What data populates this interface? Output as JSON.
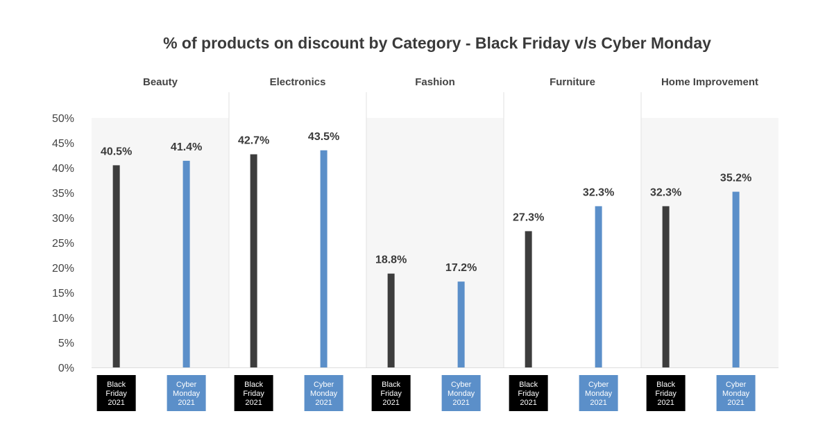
{
  "chart_data": {
    "type": "bar",
    "title": "% of products on discount by Category - Black Friday v/s Cyber Monday",
    "ylim": [
      0,
      50
    ],
    "y_ticks": [
      "0%",
      "5%",
      "10%",
      "15%",
      "20%",
      "25%",
      "30%",
      "35%",
      "40%",
      "45%",
      "50%"
    ],
    "grid": false,
    "categories": [
      "Beauty",
      "Electronics",
      "Fashion",
      "Furniture",
      "Home Improvement"
    ],
    "series": [
      {
        "name": "Black Friday 2021",
        "label_lines": [
          "Black",
          "Friday",
          "2021"
        ],
        "color": "#3d3d3d",
        "label_bg": "#000000",
        "values": [
          40.5,
          42.7,
          18.8,
          27.3,
          32.3
        ],
        "value_labels": [
          "40.5%",
          "42.7%",
          "18.8%",
          "27.3%",
          "32.3%"
        ]
      },
      {
        "name": "Cyber Monday 2021",
        "label_lines": [
          "Cyber",
          "Monday",
          "2021"
        ],
        "color": "#5b8fc9",
        "label_bg": "#5b8fc9",
        "values": [
          41.4,
          43.5,
          17.2,
          32.3,
          35.2
        ],
        "value_labels": [
          "41.4%",
          "43.5%",
          "17.2%",
          "32.3%",
          "35.2%"
        ]
      }
    ],
    "panel_colors": [
      "#f6f6f6",
      "#ffffff"
    ]
  }
}
